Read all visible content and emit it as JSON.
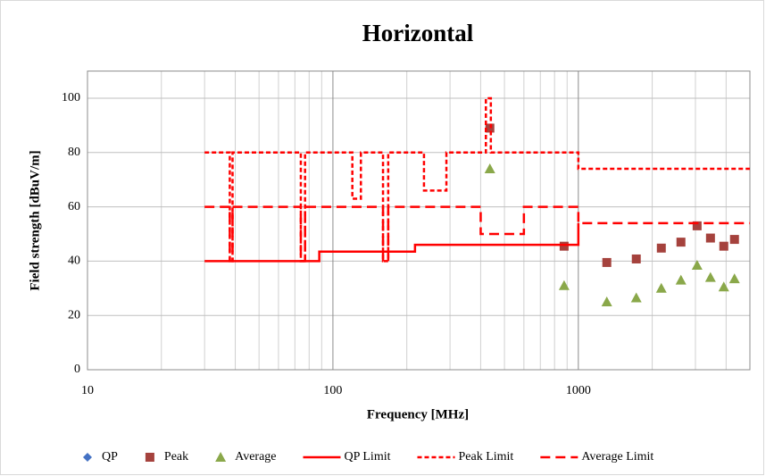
{
  "chart_data": {
    "type": "scatter",
    "title": "Horizontal",
    "x_label": "Frequency [MHz]",
    "y_label": "Field strength [dBuV/m]",
    "xscale": "log",
    "xlim": [
      10,
      5000
    ],
    "xticks": [
      10,
      100,
      1000
    ],
    "ylim": [
      0,
      110
    ],
    "yticks": [
      0,
      20,
      40,
      60,
      80,
      100
    ],
    "grid": true,
    "legend": "bottom",
    "series": [
      {
        "name": "QP",
        "color": "#4472c4",
        "marker": "diamond",
        "x": [],
        "values": []
      },
      {
        "name": "Peak",
        "color": "#a5423d",
        "marker": "square",
        "x": [
          436,
          875,
          1306,
          1722,
          2178,
          2618,
          3047,
          3454,
          3914,
          4327
        ],
        "values": [
          89,
          45.5,
          39.5,
          40.8,
          44.8,
          47,
          53,
          48.5,
          45.5,
          48
        ]
      },
      {
        "name": "Average",
        "color": "#8aa84a",
        "marker": "triangle",
        "x": [
          436,
          875,
          1306,
          1722,
          2178,
          2618,
          3047,
          3454,
          3914,
          4327
        ],
        "values": [
          74,
          31,
          25,
          26.5,
          30,
          33,
          38.5,
          34,
          30.5,
          33.5
        ]
      },
      {
        "name": "QP Limit",
        "color": "#ff0000",
        "line": "solid",
        "x": [
          30,
          88,
          88,
          216,
          216,
          1000,
          1000
        ],
        "values": [
          40,
          40,
          43.5,
          43.5,
          46,
          46,
          54
        ]
      },
      {
        "name": "Peak Limit",
        "color": "#ff0000",
        "line": "dash",
        "x": [
          30,
          38,
          38,
          39,
          39,
          74,
          74,
          77,
          77,
          120,
          120,
          130,
          130,
          160,
          160,
          168,
          168,
          235,
          235,
          290,
          290,
          420,
          420,
          440,
          440,
          1000,
          1000,
          5000
        ],
        "values": [
          80,
          80,
          40,
          40,
          80,
          80,
          40,
          40,
          80,
          80,
          63,
          63,
          80,
          80,
          40,
          40,
          80,
          80,
          66,
          66,
          80,
          80,
          100,
          100,
          80,
          80,
          74,
          74
        ]
      },
      {
        "name": "Average Limit",
        "color": "#ff0000",
        "line": "longdash",
        "x": [
          30,
          38,
          38,
          39,
          39,
          74,
          74,
          77,
          77,
          160,
          160,
          168,
          168,
          400,
          400,
          600,
          600,
          1000,
          1000,
          5000
        ],
        "values": [
          60,
          60,
          40,
          40,
          60,
          60,
          40,
          40,
          60,
          60,
          40,
          40,
          60,
          60,
          50,
          50,
          60,
          60,
          54,
          54
        ]
      }
    ]
  }
}
